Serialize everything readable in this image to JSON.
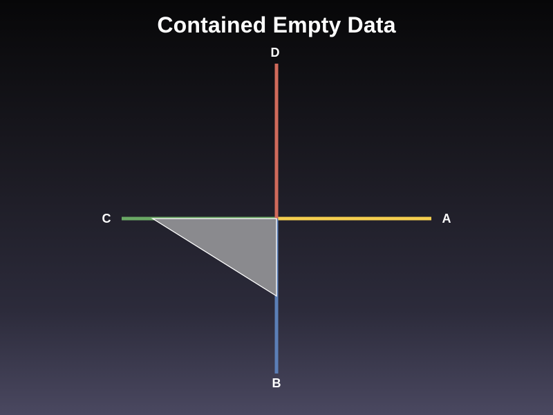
{
  "chart_data": {
    "type": "radar",
    "title": "Contained Empty Data",
    "axes": [
      {
        "label": "A",
        "color": "#f5cf4f"
      },
      {
        "label": "B",
        "color": "#5b7fb7"
      },
      {
        "label": "C",
        "color": "#6aa865"
      },
      {
        "label": "D",
        "color": "#d06a5b"
      }
    ],
    "range": [
      0,
      1
    ],
    "series": [
      {
        "values": [
          0,
          0.5,
          0.8,
          0
        ],
        "fill": "#8a8a8e",
        "stroke": "#ffffff"
      }
    ],
    "grid": false,
    "legend": "none"
  }
}
